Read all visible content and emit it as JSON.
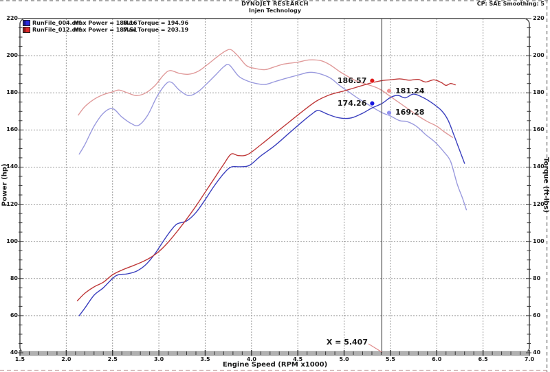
{
  "header": {
    "title": "DYNOJET RESEARCH",
    "subtitle": "Injen Technology",
    "right_info": "CP: SAE  Smoothing: 5"
  },
  "legend": [
    {
      "file": "RunFile_004.drf",
      "max_power": "Max Power = 180.16",
      "max_torque": "Max Torque = 194.96",
      "swatch_dark": "#1b1b8c",
      "swatch_bright": "#2a2ae0"
    },
    {
      "file": "RunFile_012.drf",
      "max_power": "Max Power = 187.51",
      "max_torque": "Max Torque = 203.19",
      "swatch_dark": "#8c1b1b",
      "swatch_bright": "#e02a2a"
    }
  ],
  "chart_data": {
    "type": "line",
    "xlabel": "Engine Speed (RPM x1000)",
    "ylabel_left": "Power (hp)",
    "ylabel_right": "Torque (ft-lbs)",
    "xlim": [
      1.5,
      7.0
    ],
    "ylim": [
      40,
      220
    ],
    "x_tick_labels": [
      "1.5",
      "2.0",
      "2.5",
      "3.0",
      "3.5",
      "4.0",
      "4.5",
      "5.0",
      "5.5",
      "6.0",
      "6.5",
      "7.0"
    ],
    "y_tick_labels": [
      "220",
      "200",
      "180",
      "160",
      "140",
      "120",
      "100",
      "80",
      "60",
      "40"
    ],
    "x_major_step": 0.5,
    "x_minor_step": 0.1,
    "y_major_step": 20,
    "y_minor_step": 5,
    "grid": true,
    "legend_position": "top-left",
    "cursor_x": 5.407,
    "cursor_label": "X = 5.407",
    "grid_color": "#9a9a9a",
    "border_color": "#4a4a4a",
    "cursor_color": "#4a4a4a",
    "connector_color": "#e08a8a",
    "series": [
      {
        "name": "RunFile_004 Torque (ft-lbs)",
        "color": "#9a9ade",
        "points": [
          [
            2.14,
            147
          ],
          [
            2.2,
            152
          ],
          [
            2.3,
            162
          ],
          [
            2.4,
            169
          ],
          [
            2.5,
            171.5
          ],
          [
            2.6,
            167
          ],
          [
            2.7,
            163.5
          ],
          [
            2.78,
            162.5
          ],
          [
            2.88,
            168
          ],
          [
            2.98,
            178
          ],
          [
            3.08,
            185
          ],
          [
            3.14,
            185.5
          ],
          [
            3.22,
            181.5
          ],
          [
            3.32,
            178.5
          ],
          [
            3.42,
            180.5
          ],
          [
            3.52,
            185
          ],
          [
            3.62,
            190
          ],
          [
            3.7,
            194
          ],
          [
            3.76,
            195
          ],
          [
            3.86,
            189
          ],
          [
            3.95,
            186.5
          ],
          [
            4.05,
            185
          ],
          [
            4.15,
            184.5
          ],
          [
            4.25,
            186
          ],
          [
            4.35,
            187.5
          ],
          [
            4.5,
            189.5
          ],
          [
            4.62,
            191
          ],
          [
            4.72,
            190.5
          ],
          [
            4.85,
            188
          ],
          [
            4.95,
            184
          ],
          [
            5.05,
            180.5
          ],
          [
            5.15,
            177
          ],
          [
            5.25,
            174
          ],
          [
            5.33,
            171.5
          ],
          [
            5.41,
            169.3
          ],
          [
            5.5,
            167.5
          ],
          [
            5.6,
            165
          ],
          [
            5.68,
            164.5
          ],
          [
            5.78,
            162
          ],
          [
            5.88,
            157.5
          ],
          [
            5.98,
            153.5
          ],
          [
            6.08,
            148
          ],
          [
            6.15,
            143
          ],
          [
            6.22,
            131
          ],
          [
            6.28,
            123
          ],
          [
            6.32,
            117
          ]
        ]
      },
      {
        "name": "RunFile_012 Torque (ft-lbs)",
        "color": "#e09a9a",
        "points": [
          [
            2.13,
            168
          ],
          [
            2.2,
            172.5
          ],
          [
            2.3,
            176.5
          ],
          [
            2.4,
            179
          ],
          [
            2.5,
            180.5
          ],
          [
            2.57,
            181.5
          ],
          [
            2.66,
            180
          ],
          [
            2.76,
            178.5
          ],
          [
            2.86,
            180
          ],
          [
            2.96,
            184
          ],
          [
            3.05,
            189.5
          ],
          [
            3.12,
            192
          ],
          [
            3.22,
            190.5
          ],
          [
            3.32,
            190
          ],
          [
            3.42,
            191.5
          ],
          [
            3.52,
            195
          ],
          [
            3.62,
            199
          ],
          [
            3.72,
            202.5
          ],
          [
            3.78,
            203.2
          ],
          [
            3.86,
            199.5
          ],
          [
            3.95,
            194.5
          ],
          [
            4.05,
            193
          ],
          [
            4.15,
            192.5
          ],
          [
            4.25,
            194
          ],
          [
            4.35,
            195.5
          ],
          [
            4.5,
            196.5
          ],
          [
            4.62,
            197.7
          ],
          [
            4.75,
            197.3
          ],
          [
            4.85,
            195
          ],
          [
            4.95,
            191.5
          ],
          [
            5.05,
            188.5
          ],
          [
            5.15,
            186
          ],
          [
            5.25,
            184.5
          ],
          [
            5.35,
            182.8
          ],
          [
            5.41,
            181.2
          ],
          [
            5.5,
            178
          ],
          [
            5.6,
            174.5
          ],
          [
            5.7,
            171
          ],
          [
            5.8,
            167.5
          ],
          [
            5.9,
            164.5
          ],
          [
            6.0,
            162
          ],
          [
            6.08,
            159
          ],
          [
            6.17,
            156
          ]
        ]
      },
      {
        "name": "RunFile_004 Power (hp)",
        "color": "#3a3fbe",
        "points": [
          [
            2.14,
            60
          ],
          [
            2.2,
            64
          ],
          [
            2.3,
            71
          ],
          [
            2.4,
            75
          ],
          [
            2.5,
            80
          ],
          [
            2.56,
            82
          ],
          [
            2.66,
            82.5
          ],
          [
            2.76,
            84
          ],
          [
            2.86,
            87.5
          ],
          [
            2.96,
            93.5
          ],
          [
            3.06,
            101
          ],
          [
            3.14,
            106.5
          ],
          [
            3.2,
            109.5
          ],
          [
            3.3,
            111
          ],
          [
            3.4,
            115.5
          ],
          [
            3.5,
            122.5
          ],
          [
            3.6,
            130
          ],
          [
            3.7,
            136.5
          ],
          [
            3.78,
            140
          ],
          [
            3.88,
            140.2
          ],
          [
            3.98,
            141
          ],
          [
            4.1,
            146
          ],
          [
            4.25,
            151.5
          ],
          [
            4.4,
            158
          ],
          [
            4.55,
            164.5
          ],
          [
            4.65,
            168.5
          ],
          [
            4.72,
            170.5
          ],
          [
            4.82,
            168.5
          ],
          [
            4.92,
            166.8
          ],
          [
            5.02,
            166.2
          ],
          [
            5.1,
            166.8
          ],
          [
            5.2,
            169
          ],
          [
            5.3,
            171.8
          ],
          [
            5.41,
            174.3
          ],
          [
            5.5,
            177.5
          ],
          [
            5.58,
            178.6
          ],
          [
            5.66,
            177.3
          ],
          [
            5.75,
            179.3
          ],
          [
            5.85,
            177.5
          ],
          [
            5.95,
            174.5
          ],
          [
            6.05,
            170.5
          ],
          [
            6.12,
            165.5
          ],
          [
            6.18,
            158
          ],
          [
            6.24,
            150
          ],
          [
            6.3,
            142
          ]
        ]
      },
      {
        "name": "RunFile_012 Power (hp)",
        "color": "#bf3a3a",
        "points": [
          [
            2.12,
            68
          ],
          [
            2.2,
            72
          ],
          [
            2.3,
            75.5
          ],
          [
            2.4,
            78
          ],
          [
            2.5,
            82
          ],
          [
            2.6,
            84.5
          ],
          [
            2.7,
            86.5
          ],
          [
            2.8,
            88.5
          ],
          [
            2.9,
            91
          ],
          [
            3.0,
            94.5
          ],
          [
            3.1,
            99.5
          ],
          [
            3.2,
            105.5
          ],
          [
            3.3,
            112
          ],
          [
            3.4,
            119
          ],
          [
            3.5,
            126.5
          ],
          [
            3.6,
            134
          ],
          [
            3.7,
            141.5
          ],
          [
            3.78,
            147
          ],
          [
            3.86,
            146.2
          ],
          [
            3.96,
            146.8
          ],
          [
            4.1,
            152
          ],
          [
            4.25,
            158
          ],
          [
            4.4,
            164
          ],
          [
            4.55,
            170
          ],
          [
            4.7,
            175.5
          ],
          [
            4.85,
            179
          ],
          [
            5.0,
            181
          ],
          [
            5.1,
            182.5
          ],
          [
            5.2,
            184
          ],
          [
            5.3,
            185.4
          ],
          [
            5.41,
            186.6
          ],
          [
            5.5,
            187
          ],
          [
            5.6,
            187.5
          ],
          [
            5.7,
            186.8
          ],
          [
            5.8,
            187.2
          ],
          [
            5.88,
            185.8
          ],
          [
            5.97,
            187
          ],
          [
            6.05,
            185.5
          ],
          [
            6.1,
            184
          ],
          [
            6.15,
            185
          ],
          [
            6.2,
            184.3
          ]
        ]
      }
    ],
    "cursor_markers": [
      {
        "label": "186.57",
        "rpm": 5.303,
        "value": 186.5,
        "dot_color": "#e01818",
        "side": "left"
      },
      {
        "label": "181.24",
        "rpm": 5.486,
        "value": 181.0,
        "dot_color": "#ef9090",
        "side": "right"
      },
      {
        "label": "174.26",
        "rpm": 5.303,
        "value": 174.3,
        "dot_color": "#1818e0",
        "side": "left"
      },
      {
        "label": "169.28",
        "rpm": 5.486,
        "value": 169.2,
        "dot_color": "#9090ef",
        "side": "right"
      }
    ]
  }
}
